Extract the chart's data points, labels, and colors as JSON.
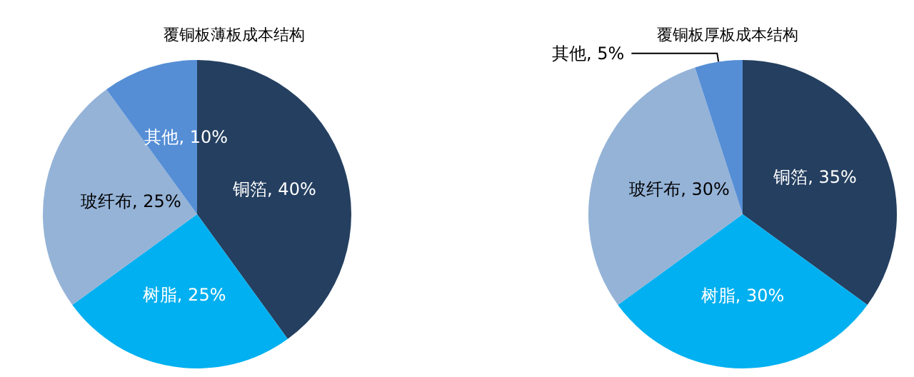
{
  "chart_data": [
    {
      "type": "pie",
      "title": "覆铜板薄板成本结构",
      "categories": [
        "铜箔",
        "树脂",
        "玻纤布",
        "其他"
      ],
      "values": [
        40,
        25,
        25,
        10
      ],
      "value_labels": [
        "40%",
        "25%",
        "25%",
        "10%"
      ],
      "colors": [
        "#243f60",
        "#00b0f0",
        "#95b3d7",
        "#558ed5"
      ]
    },
    {
      "type": "pie",
      "title": "覆铜板厚板成本结构",
      "categories": [
        "铜箔",
        "树脂",
        "玻纤布",
        "其他"
      ],
      "values": [
        35,
        30,
        30,
        5
      ],
      "value_labels": [
        "35%",
        "30%",
        "30%",
        "5%"
      ],
      "colors": [
        "#243f60",
        "#00b0f0",
        "#95b3d7",
        "#558ed5"
      ]
    }
  ]
}
